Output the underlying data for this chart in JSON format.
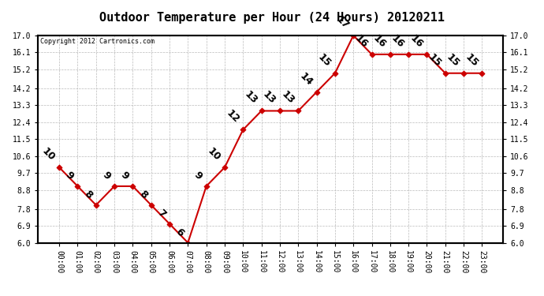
{
  "title": "Outdoor Temperature per Hour (24 Hours) 20120211",
  "copyright_text": "Copyright 2012 Cartronics.com",
  "hours": [
    "00:00",
    "01:00",
    "02:00",
    "03:00",
    "04:00",
    "05:00",
    "06:00",
    "07:00",
    "08:00",
    "09:00",
    "10:00",
    "11:00",
    "12:00",
    "13:00",
    "14:00",
    "15:00",
    "16:00",
    "17:00",
    "18:00",
    "19:00",
    "20:00",
    "21:00",
    "22:00",
    "23:00"
  ],
  "values": [
    10,
    9,
    8,
    9,
    9,
    8,
    7,
    6,
    9,
    10,
    12,
    13,
    13,
    13,
    14,
    15,
    17,
    16,
    16,
    16,
    16,
    15,
    15,
    15
  ],
  "line_color": "#cc0000",
  "marker_color": "#cc0000",
  "bg_color": "#ffffff",
  "grid_color": "#bbbbbb",
  "title_fontsize": 11,
  "label_fontsize": 7,
  "annotation_fontsize": 9,
  "ylim_min": 6.0,
  "ylim_max": 17.0,
  "yticks": [
    6.0,
    6.9,
    7.8,
    8.8,
    9.7,
    10.6,
    11.5,
    12.4,
    13.3,
    14.2,
    15.2,
    16.1,
    17.0
  ]
}
